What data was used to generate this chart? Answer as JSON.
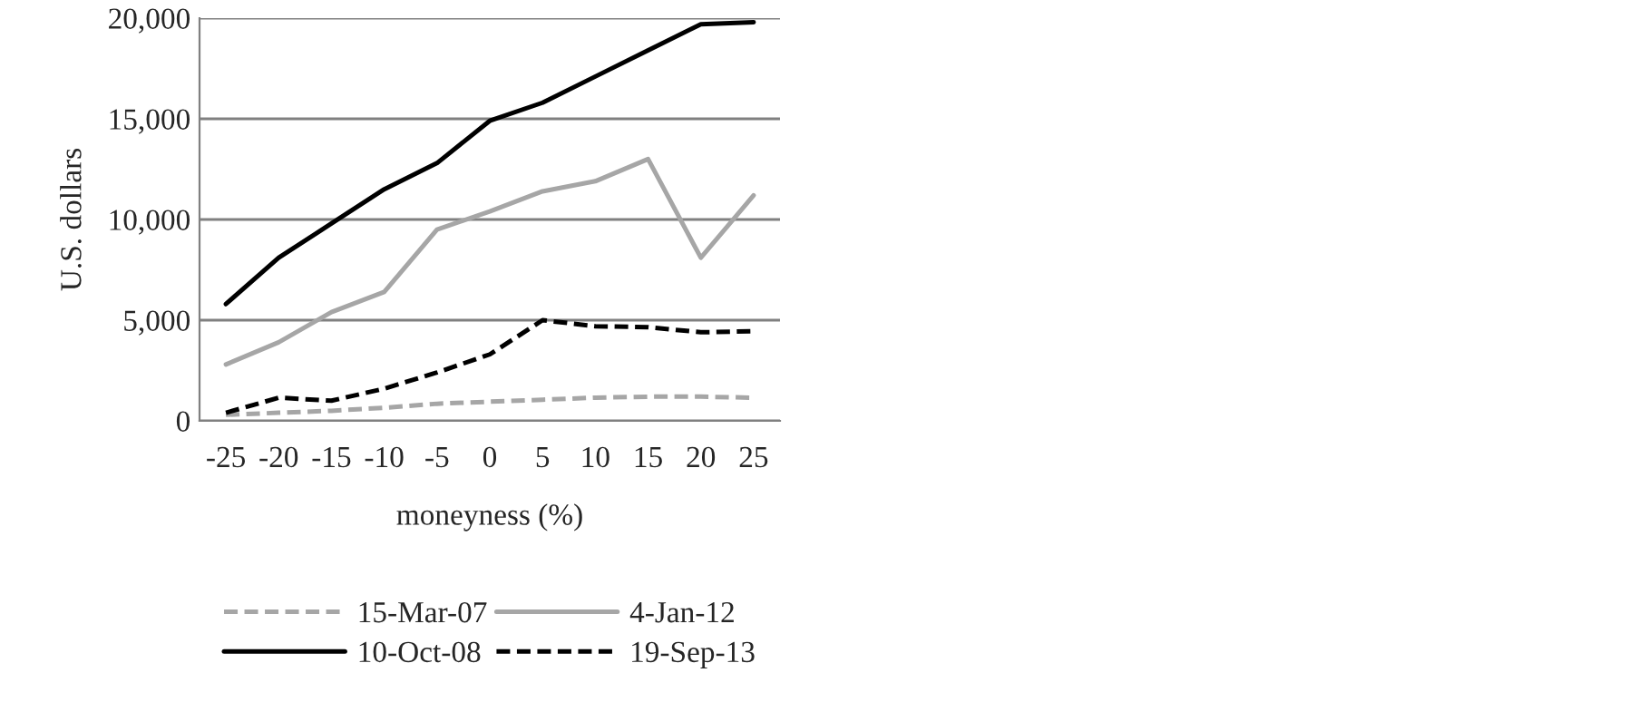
{
  "chart_data": {
    "type": "line",
    "xlabel": "moneyness (%)",
    "ylabel": "U.S. dollars",
    "categories": [
      "-25",
      "-20",
      "-15",
      "-10",
      "-5",
      "0",
      "5",
      "10",
      "15",
      "20",
      "25"
    ],
    "ylim": [
      0,
      20000
    ],
    "yticks": [
      {
        "value": 0,
        "label": "0"
      },
      {
        "value": 5000,
        "label": "5,000"
      },
      {
        "value": 10000,
        "label": "10,000"
      },
      {
        "value": 15000,
        "label": "15,000"
      },
      {
        "value": 20000,
        "label": "20,000"
      }
    ],
    "grid": "y",
    "legend": "bottom",
    "marker": "none",
    "series": [
      {
        "name": "15-Mar-07",
        "color": "#a6a6a6",
        "line_style": "dashed",
        "values": [
          300,
          400,
          500,
          650,
          850,
          950,
          1050,
          1150,
          1200,
          1200,
          1150
        ]
      },
      {
        "name": "10-Oct-08",
        "color": "#000000",
        "line_style": "solid",
        "values": [
          5800,
          8100,
          9800,
          11500,
          12800,
          14900,
          15800,
          17100,
          18400,
          19700,
          19800
        ]
      },
      {
        "name": "4-Jan-12",
        "color": "#a6a6a6",
        "line_style": "solid",
        "values": [
          2800,
          3900,
          5400,
          6400,
          9500,
          10400,
          11400,
          11900,
          13000,
          8100,
          11200
        ]
      },
      {
        "name": "19-Sep-13",
        "color": "#000000",
        "line_style": "dashed",
        "values": [
          400,
          1150,
          1000,
          1600,
          2400,
          3300,
          5000,
          4700,
          4650,
          4400,
          4450
        ]
      }
    ]
  }
}
